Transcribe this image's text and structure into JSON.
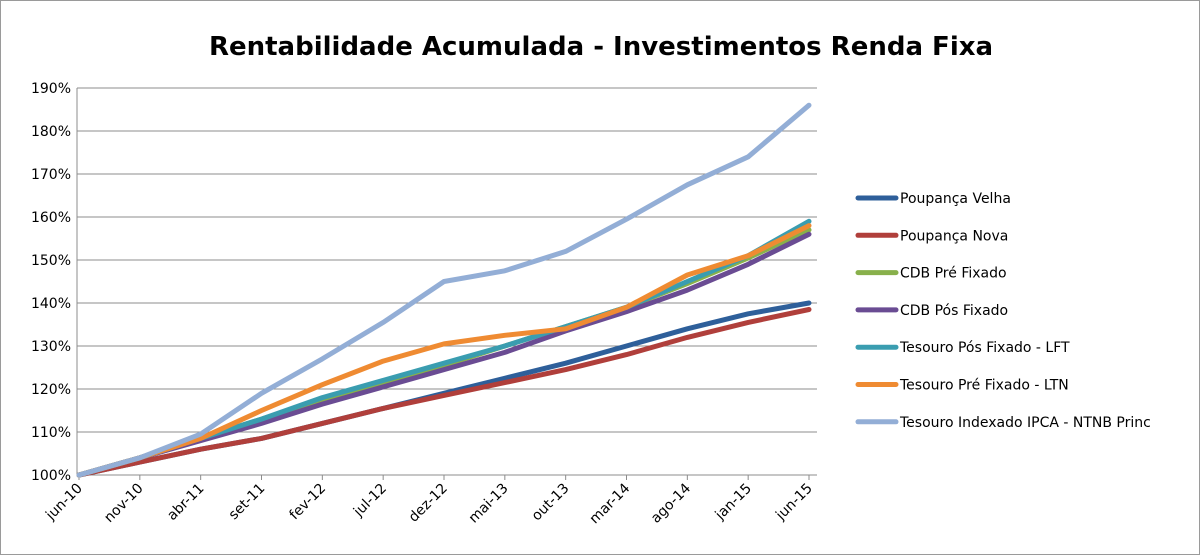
{
  "chart_data": {
    "type": "line",
    "title": "Rentabilidade Acumulada - Investimentos Renda Fixa",
    "xlabel": "",
    "ylabel": "",
    "ylim": [
      100,
      190
    ],
    "yticks": [
      "100%",
      "110%",
      "120%",
      "130%",
      "140%",
      "150%",
      "160%",
      "170%",
      "180%",
      "190%"
    ],
    "xticks": [
      "jun-10",
      "nov-10",
      "abr-11",
      "set-11",
      "fev-12",
      "jul-12",
      "dez-12",
      "mai-13",
      "out-13",
      "mar-14",
      "ago-14",
      "jan-15",
      "jun-15"
    ],
    "x": [
      "jun-10",
      "nov-10",
      "abr-11",
      "set-11",
      "fev-12",
      "jul-12",
      "dez-12",
      "mai-13",
      "out-13",
      "mar-14",
      "ago-14",
      "jan-15",
      "jun-15"
    ],
    "grid": true,
    "legend": "right",
    "series": [
      {
        "name": "Poupança Velha",
        "color": "#2e5f9a",
        "values": [
          100,
          103,
          106,
          108.5,
          112,
          115.5,
          119,
          122.5,
          126,
          130,
          134,
          137.5,
          140
        ]
      },
      {
        "name": "Poupança Nova",
        "color": "#b03f3b",
        "values": [
          100,
          103,
          106,
          108.5,
          112,
          115.5,
          118.5,
          121.5,
          124.5,
          128,
          132,
          135.5,
          138.5
        ]
      },
      {
        "name": "CDB Pré Fixado",
        "color": "#88b04b",
        "values": [
          100,
          104,
          108.5,
          113,
          117.5,
          121.5,
          125.5,
          130,
          134.5,
          139,
          144.5,
          150.5,
          157
        ]
      },
      {
        "name": "CDB Pós Fixado",
        "color": "#6a4c93",
        "values": [
          100,
          104,
          108,
          112,
          116.5,
          120.5,
          124.5,
          128.5,
          133.5,
          138,
          143,
          149,
          156
        ]
      },
      {
        "name": "Tesouro Pós Fixado - LFT",
        "color": "#3a9db0",
        "values": [
          100,
          104,
          108.5,
          113,
          118,
          122,
          126,
          130,
          134.5,
          139,
          145,
          151,
          159
        ]
      },
      {
        "name": "Tesouro Pré Fixado - LTN",
        "color": "#ef8b32",
        "values": [
          100,
          104,
          108.5,
          115,
          121,
          126.5,
          130.5,
          132.5,
          134,
          139,
          146.5,
          151,
          158
        ]
      },
      {
        "name": "Tesouro Indexado IPCA - NTNB Princ",
        "color": "#93aed6",
        "values": [
          100,
          104,
          109.5,
          119,
          127,
          135.5,
          145,
          147.5,
          152,
          159.5,
          167.5,
          174,
          186
        ]
      }
    ]
  }
}
